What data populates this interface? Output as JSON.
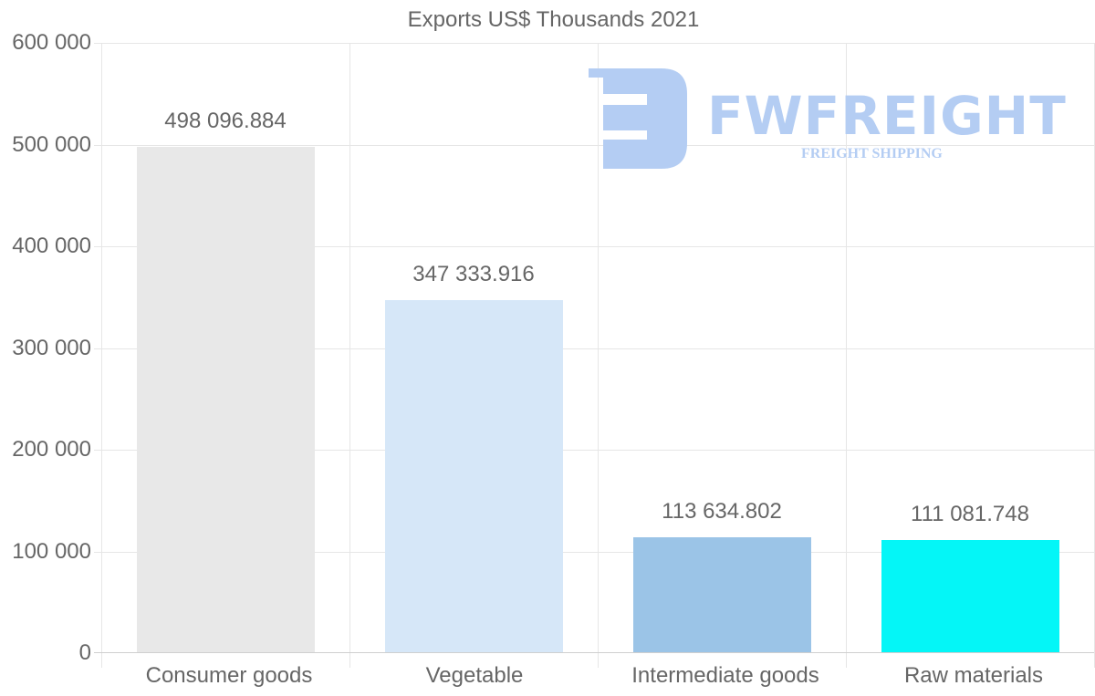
{
  "chart_data": {
    "type": "bar",
    "title": "Exports US$ Thousands 2021",
    "xlabel": "",
    "ylabel": "",
    "ylim": [
      0,
      600000
    ],
    "yticks": [
      "0",
      "100 000",
      "200 000",
      "300 000",
      "400 000",
      "500 000",
      "600 000"
    ],
    "categories": [
      "Consumer goods",
      "Vegetable",
      "Intermediate goods",
      "Raw materials"
    ],
    "values": [
      498096.884,
      347333.916,
      113634.802,
      111081.748
    ],
    "value_labels": [
      "498 096.884",
      "347 333.916",
      "113 634.802",
      "111 081.748"
    ],
    "colors": [
      "#e8e8e8",
      "#d6e7f8",
      "#9bc4e7",
      "#04f6f7"
    ],
    "grid": true,
    "legend": "none"
  },
  "watermark": {
    "brand": "FWFREIGHT",
    "tagline": "FREIGHT SHIPPING",
    "color": "#b4cdf3"
  }
}
